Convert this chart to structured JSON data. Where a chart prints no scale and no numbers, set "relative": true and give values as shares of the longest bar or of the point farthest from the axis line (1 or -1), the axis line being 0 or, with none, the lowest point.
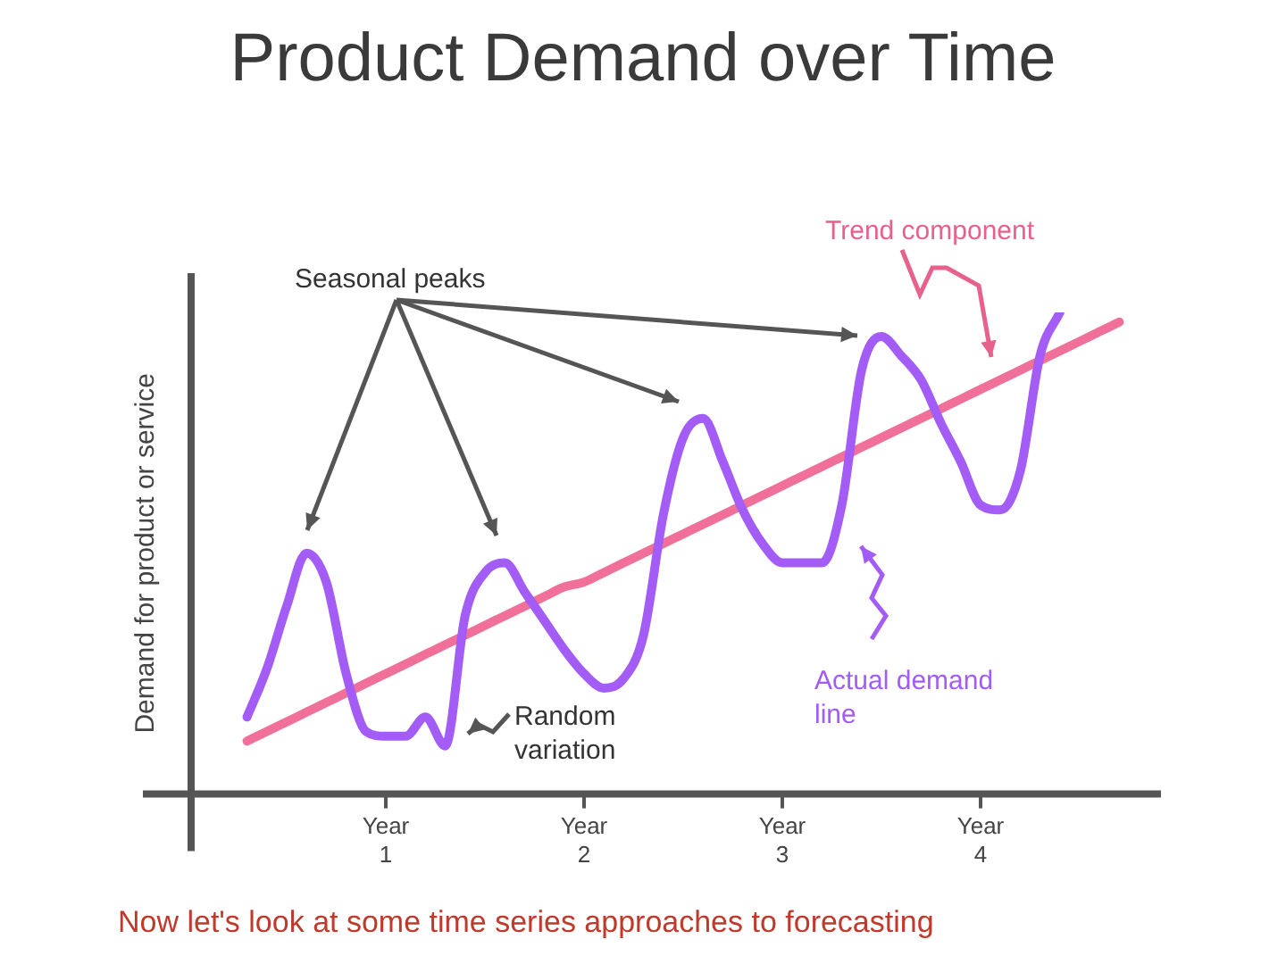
{
  "chart_data": {
    "type": "line",
    "title": "Product Demand over Time",
    "ylabel": "Demand for product or service",
    "relative": true,
    "legend": false,
    "marker": "none",
    "categories": [
      null,
      null,
      null,
      null,
      null,
      null,
      null,
      null,
      null,
      null,
      "Year 1",
      null,
      null,
      null,
      null,
      null,
      null,
      null,
      null,
      null,
      "Year 2",
      null,
      null,
      null,
      null,
      null,
      null,
      null,
      null,
      null,
      "Year 3",
      null,
      null,
      null,
      null,
      null,
      null,
      null,
      null,
      null,
      "Year 4",
      null,
      null,
      null,
      null,
      null,
      null,
      null,
      null,
      null,
      null
    ],
    "series": [
      {
        "color": "#a35cf5",
        "values": [
          null,
          null,
          null,
          0.16,
          0.26,
          0.39,
          0.5,
          0.44,
          0.25,
          0.13,
          0.12,
          0.12,
          0.16,
          0.1,
          0.37,
          0.46,
          0.48,
          0.42,
          0.36,
          0.3,
          0.25,
          0.22,
          0.24,
          0.33,
          0.58,
          0.74,
          0.78,
          0.69,
          0.59,
          0.52,
          0.48,
          0.48,
          0.48,
          0.6,
          0.88,
          0.95,
          0.91,
          0.86,
          0.77,
          0.69,
          0.6,
          0.59,
          0.67,
          0.91,
          1,
          null,
          null,
          null,
          null,
          null,
          null
        ]
      },
      {
        "color": "#f0709a",
        "values": [
          null,
          null,
          null,
          0.11,
          0.13,
          0.15,
          0.17,
          0.19,
          0.21,
          0.23,
          0.25,
          0.27,
          0.29,
          0.31,
          0.33,
          0.35,
          0.37,
          0.39,
          0.41,
          0.43,
          0.44,
          0.46,
          0.48,
          0.5,
          0.52,
          0.54,
          0.56,
          0.58,
          0.6,
          0.62,
          0.64,
          0.66,
          0.68,
          0.7,
          0.72,
          0.74,
          0.76,
          0.78,
          0.8,
          0.82,
          0.84,
          0.86,
          0.88,
          0.9,
          0.92,
          0.94,
          0.96,
          0.98,
          null,
          null,
          null
        ]
      }
    ],
    "annotations": [
      "Seasonal peaks",
      "Random variation",
      "Trend component",
      "Actual demand line",
      "Now let's look at some time series approaches to forecasting"
    ]
  }
}
